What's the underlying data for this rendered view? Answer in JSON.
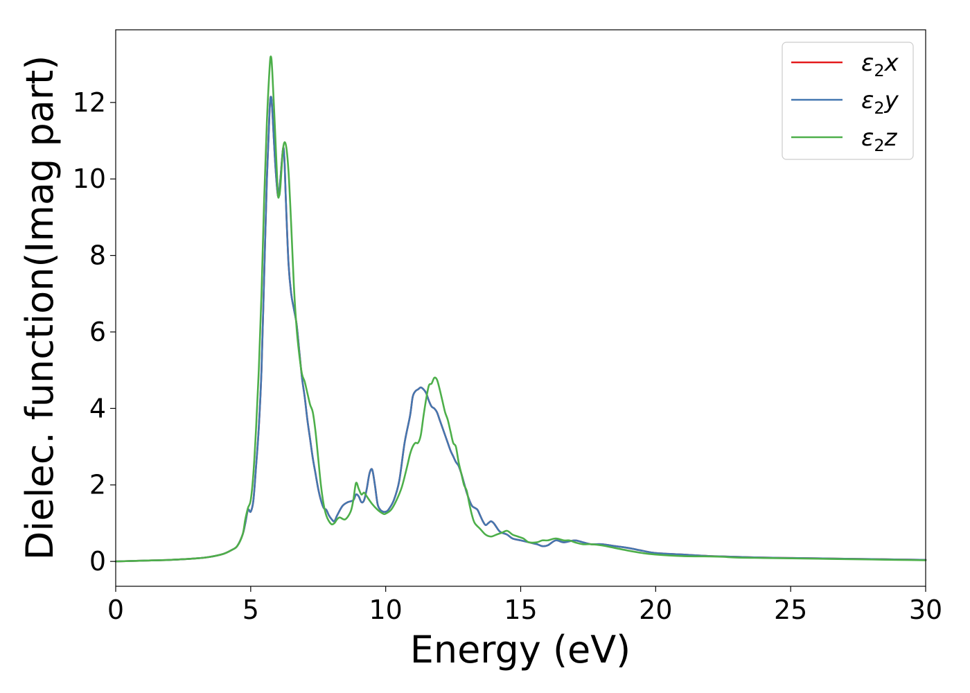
{
  "chart_data": {
    "type": "line",
    "xlabel": "Energy (eV)",
    "ylabel": "Dielec. function(Imag part)",
    "xlim": [
      0,
      30
    ],
    "ylim": [
      -0.65,
      13.9
    ],
    "xticks": [
      0,
      5,
      10,
      15,
      20,
      25,
      30
    ],
    "xtick_labels": [
      "0",
      "5",
      "10",
      "15",
      "20",
      "25",
      "30"
    ],
    "yticks": [
      0,
      2,
      4,
      6,
      8,
      10,
      12
    ],
    "ytick_labels": [
      "0",
      "2",
      "4",
      "6",
      "8",
      "10",
      "12"
    ],
    "grid": false,
    "legend_position": "top-right",
    "series": [
      {
        "name": "ε₂x",
        "legend_base": "ε",
        "legend_sub": "2",
        "legend_suffix": "x",
        "color": "#e41a1c",
        "x": [
          0,
          1,
          2,
          3,
          3.5,
          4,
          4.3,
          4.5,
          4.7,
          4.8,
          4.9,
          5.0,
          5.1,
          5.2,
          5.3,
          5.4,
          5.5,
          5.6,
          5.7,
          5.75,
          5.8,
          5.9,
          6.0,
          6.05,
          6.1,
          6.2,
          6.25,
          6.3,
          6.4,
          6.5,
          6.6,
          6.7,
          6.8,
          6.9,
          7.0,
          7.1,
          7.2,
          7.3,
          7.4,
          7.5,
          7.6,
          7.7,
          7.8,
          7.9,
          8.0,
          8.1,
          8.2,
          8.4,
          8.6,
          8.8,
          8.9,
          9.0,
          9.1,
          9.2,
          9.3,
          9.4,
          9.5,
          9.6,
          9.7,
          9.8,
          9.9,
          10.0,
          10.1,
          10.3,
          10.5,
          10.7,
          10.9,
          11.0,
          11.1,
          11.2,
          11.3,
          11.4,
          11.5,
          11.6,
          11.7,
          11.8,
          11.9,
          12.0,
          12.1,
          12.2,
          12.3,
          12.4,
          12.5,
          12.6,
          12.7,
          12.8,
          12.9,
          13.0,
          13.1,
          13.2,
          13.3,
          13.4,
          13.5,
          13.6,
          13.7,
          13.8,
          13.9,
          14.0,
          14.1,
          14.2,
          14.3,
          14.5,
          14.7,
          15.0,
          15.3,
          15.6,
          15.8,
          16.0,
          16.3,
          16.6,
          17.0,
          17.3,
          17.6,
          18.0,
          18.5,
          19.0,
          19.5,
          20,
          21,
          22,
          22.5,
          23,
          24,
          25,
          26,
          27,
          28,
          29,
          30
        ],
        "y": [
          0,
          0.02,
          0.04,
          0.08,
          0.12,
          0.2,
          0.3,
          0.4,
          0.7,
          1.0,
          1.35,
          1.3,
          1.6,
          2.5,
          3.5,
          5.0,
          7.5,
          10.0,
          11.8,
          12.15,
          11.8,
          10.5,
          9.6,
          9.65,
          10.0,
          10.8,
          10.5,
          9.5,
          7.8,
          7.0,
          6.6,
          6.2,
          5.5,
          4.8,
          4.3,
          3.7,
          3.2,
          2.7,
          2.3,
          1.9,
          1.6,
          1.4,
          1.35,
          1.2,
          1.1,
          1.05,
          1.2,
          1.45,
          1.55,
          1.6,
          1.75,
          1.7,
          1.55,
          1.6,
          1.9,
          2.3,
          2.4,
          2.0,
          1.5,
          1.35,
          1.3,
          1.3,
          1.35,
          1.6,
          2.1,
          3.1,
          3.8,
          4.3,
          4.45,
          4.5,
          4.55,
          4.5,
          4.4,
          4.2,
          4.05,
          4.0,
          3.9,
          3.7,
          3.5,
          3.3,
          3.1,
          2.9,
          2.75,
          2.6,
          2.5,
          2.3,
          2.05,
          1.8,
          1.6,
          1.45,
          1.4,
          1.35,
          1.2,
          1.05,
          0.95,
          1.0,
          1.05,
          1.0,
          0.9,
          0.8,
          0.75,
          0.7,
          0.6,
          0.55,
          0.5,
          0.45,
          0.4,
          0.42,
          0.55,
          0.5,
          0.55,
          0.5,
          0.45,
          0.45,
          0.4,
          0.35,
          0.28,
          0.22,
          0.18,
          0.14,
          0.13,
          0.12,
          0.1,
          0.09,
          0.08,
          0.07,
          0.06,
          0.05,
          0.04
        ]
      },
      {
        "name": "ε₂y",
        "legend_base": "ε",
        "legend_sub": "2",
        "legend_suffix": "y",
        "color": "#4377b0",
        "x": [
          0,
          1,
          2,
          3,
          3.5,
          4,
          4.3,
          4.5,
          4.7,
          4.8,
          4.9,
          5.0,
          5.1,
          5.2,
          5.3,
          5.4,
          5.5,
          5.6,
          5.7,
          5.75,
          5.8,
          5.9,
          6.0,
          6.05,
          6.1,
          6.2,
          6.25,
          6.3,
          6.4,
          6.5,
          6.6,
          6.7,
          6.8,
          6.9,
          7.0,
          7.1,
          7.2,
          7.3,
          7.4,
          7.5,
          7.6,
          7.7,
          7.8,
          7.9,
          8.0,
          8.1,
          8.2,
          8.4,
          8.6,
          8.8,
          8.9,
          9.0,
          9.1,
          9.2,
          9.3,
          9.4,
          9.5,
          9.6,
          9.7,
          9.8,
          9.9,
          10.0,
          10.1,
          10.3,
          10.5,
          10.7,
          10.9,
          11.0,
          11.1,
          11.2,
          11.3,
          11.4,
          11.5,
          11.6,
          11.7,
          11.8,
          11.9,
          12.0,
          12.1,
          12.2,
          12.3,
          12.4,
          12.5,
          12.6,
          12.7,
          12.8,
          12.9,
          13.0,
          13.1,
          13.2,
          13.3,
          13.4,
          13.5,
          13.6,
          13.7,
          13.8,
          13.9,
          14.0,
          14.1,
          14.2,
          14.3,
          14.5,
          14.7,
          15.0,
          15.3,
          15.6,
          15.8,
          16.0,
          16.3,
          16.6,
          17.0,
          17.3,
          17.6,
          18.0,
          18.5,
          19.0,
          19.5,
          20,
          21,
          22,
          22.5,
          23,
          24,
          25,
          26,
          27,
          28,
          29,
          30
        ],
        "y": [
          0,
          0.02,
          0.04,
          0.08,
          0.12,
          0.2,
          0.3,
          0.4,
          0.7,
          1.0,
          1.35,
          1.3,
          1.6,
          2.5,
          3.5,
          5.0,
          7.5,
          10.0,
          11.8,
          12.15,
          11.8,
          10.5,
          9.6,
          9.65,
          10.0,
          10.8,
          10.5,
          9.5,
          7.8,
          7.0,
          6.6,
          6.2,
          5.5,
          4.8,
          4.3,
          3.7,
          3.2,
          2.7,
          2.3,
          1.9,
          1.6,
          1.4,
          1.35,
          1.2,
          1.1,
          1.05,
          1.2,
          1.45,
          1.55,
          1.6,
          1.75,
          1.7,
          1.55,
          1.6,
          1.9,
          2.3,
          2.4,
          2.0,
          1.5,
          1.35,
          1.3,
          1.3,
          1.35,
          1.6,
          2.1,
          3.1,
          3.8,
          4.3,
          4.45,
          4.5,
          4.55,
          4.5,
          4.4,
          4.2,
          4.05,
          4.0,
          3.9,
          3.7,
          3.5,
          3.3,
          3.1,
          2.9,
          2.75,
          2.6,
          2.5,
          2.3,
          2.05,
          1.8,
          1.6,
          1.45,
          1.4,
          1.35,
          1.2,
          1.05,
          0.95,
          1.0,
          1.05,
          1.0,
          0.9,
          0.8,
          0.75,
          0.7,
          0.6,
          0.55,
          0.5,
          0.45,
          0.4,
          0.42,
          0.55,
          0.5,
          0.55,
          0.5,
          0.45,
          0.45,
          0.4,
          0.35,
          0.28,
          0.22,
          0.18,
          0.14,
          0.13,
          0.12,
          0.1,
          0.09,
          0.08,
          0.07,
          0.06,
          0.05,
          0.04
        ]
      },
      {
        "name": "ε₂z",
        "legend_base": "ε",
        "legend_sub": "2",
        "legend_suffix": "z",
        "color": "#4daf4a",
        "x": [
          0,
          1,
          2,
          3,
          3.5,
          4,
          4.3,
          4.5,
          4.7,
          4.8,
          4.9,
          5.0,
          5.1,
          5.2,
          5.3,
          5.4,
          5.5,
          5.6,
          5.7,
          5.75,
          5.8,
          5.9,
          6.0,
          6.05,
          6.1,
          6.2,
          6.3,
          6.4,
          6.5,
          6.6,
          6.7,
          6.8,
          6.9,
          7.0,
          7.1,
          7.2,
          7.3,
          7.4,
          7.5,
          7.6,
          7.7,
          7.8,
          7.9,
          8.0,
          8.1,
          8.2,
          8.3,
          8.5,
          8.7,
          8.8,
          8.9,
          9.0,
          9.1,
          9.2,
          9.3,
          9.5,
          9.7,
          9.9,
          10.0,
          10.2,
          10.4,
          10.6,
          10.8,
          10.9,
          11.0,
          11.1,
          11.2,
          11.3,
          11.4,
          11.5,
          11.6,
          11.7,
          11.8,
          11.9,
          12.0,
          12.1,
          12.2,
          12.3,
          12.4,
          12.5,
          12.6,
          12.7,
          12.8,
          12.9,
          13.0,
          13.1,
          13.2,
          13.3,
          13.5,
          13.7,
          13.9,
          14.1,
          14.3,
          14.5,
          14.7,
          14.9,
          15.1,
          15.3,
          15.6,
          15.8,
          16.0,
          16.3,
          16.6,
          16.8,
          17.0,
          17.3,
          17.6,
          18.0,
          18.5,
          19.0,
          19.5,
          20,
          21,
          22,
          22.5,
          23,
          24,
          25,
          26,
          27,
          28,
          29,
          30
        ],
        "y": [
          0,
          0.02,
          0.04,
          0.08,
          0.12,
          0.2,
          0.3,
          0.4,
          0.7,
          1.1,
          1.4,
          1.6,
          2.3,
          3.5,
          5.0,
          7.0,
          9.5,
          11.5,
          12.9,
          13.2,
          12.8,
          11.3,
          9.7,
          9.55,
          9.8,
          10.8,
          10.9,
          10.2,
          8.8,
          7.2,
          6.1,
          5.4,
          4.9,
          4.7,
          4.4,
          4.1,
          3.9,
          3.4,
          2.7,
          2.0,
          1.5,
          1.2,
          1.05,
          0.97,
          1.0,
          1.1,
          1.15,
          1.1,
          1.3,
          1.6,
          2.05,
          1.9,
          1.75,
          1.8,
          1.7,
          1.5,
          1.35,
          1.25,
          1.25,
          1.35,
          1.6,
          1.95,
          2.5,
          2.8,
          3.0,
          3.1,
          3.1,
          3.3,
          3.8,
          4.25,
          4.6,
          4.65,
          4.8,
          4.75,
          4.5,
          4.2,
          3.9,
          3.7,
          3.4,
          3.1,
          3.0,
          2.6,
          2.3,
          2.0,
          1.85,
          1.5,
          1.2,
          1.0,
          0.85,
          0.7,
          0.65,
          0.7,
          0.75,
          0.8,
          0.7,
          0.65,
          0.6,
          0.5,
          0.5,
          0.55,
          0.55,
          0.6,
          0.55,
          0.55,
          0.5,
          0.45,
          0.45,
          0.42,
          0.35,
          0.28,
          0.22,
          0.18,
          0.14,
          0.13,
          0.12,
          0.1,
          0.09,
          0.08,
          0.07,
          0.06,
          0.05,
          0.04,
          0.03
        ]
      }
    ]
  }
}
